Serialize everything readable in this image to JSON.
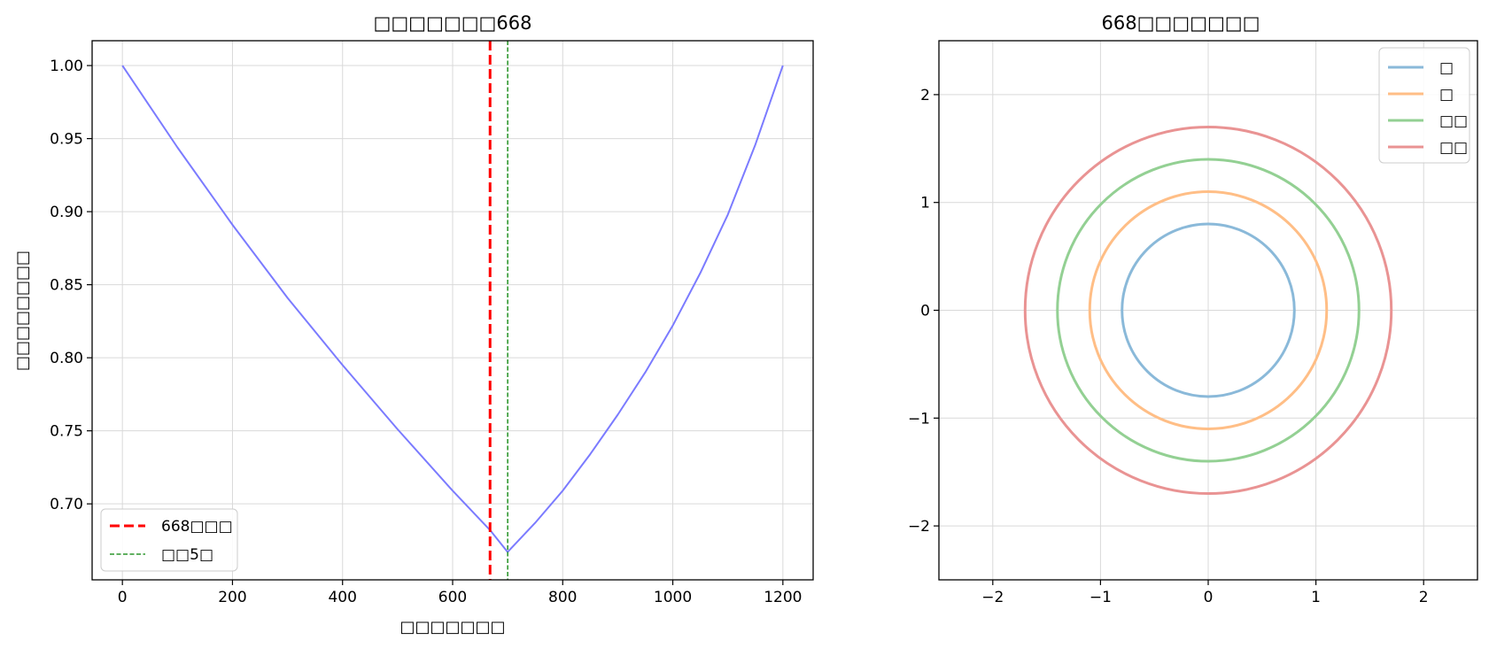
{
  "chart_data": [
    {
      "type": "line",
      "title": "□□□□□□□668",
      "xlabel": "□□□□□□□",
      "ylabel": "□□□□□□□□",
      "xlim": [
        -55,
        1255
      ],
      "ylim": [
        0.648,
        1.017
      ],
      "xticks": [
        0,
        200,
        400,
        600,
        800,
        1000,
        1200
      ],
      "yticks": [
        0.7,
        0.75,
        0.8,
        0.85,
        0.9,
        0.95,
        1.0
      ],
      "ytick_labels": [
        "0.70",
        "0.75",
        "0.80",
        "0.85",
        "0.90",
        "0.95",
        "1.00"
      ],
      "grid": true,
      "legend_position": "lower-left",
      "series": [
        {
          "name": "",
          "color": "#7b7bff",
          "x": [
            0,
            100,
            200,
            300,
            400,
            500,
            600,
            668,
            700,
            750,
            800,
            850,
            900,
            950,
            1000,
            1050,
            1100,
            1150,
            1200
          ],
          "y": [
            1.0,
            0.944,
            0.891,
            0.841,
            0.795,
            0.751,
            0.709,
            0.682,
            0.667,
            0.687,
            0.709,
            0.734,
            0.761,
            0.79,
            0.822,
            0.858,
            0.898,
            0.946,
            1.0
          ]
        }
      ],
      "vlines": [
        {
          "name": "668□□□",
          "x": 668,
          "color": "#ff0000",
          "style": "dashed",
          "width": 3
        },
        {
          "name": "□□5□",
          "x": 700,
          "color": "#008000",
          "style": "dashed",
          "width": 1.3
        }
      ]
    },
    {
      "type": "line",
      "title": "668□□□□□□□",
      "xlabel": "",
      "ylabel": "",
      "xlim": [
        -2.5,
        2.5
      ],
      "ylim": [
        -2.5,
        2.5
      ],
      "xticks": [
        -2,
        -1,
        0,
        1,
        2
      ],
      "yticks": [
        -2,
        -1,
        0,
        1,
        2
      ],
      "xtick_labels": [
        "−2",
        "−1",
        "0",
        "1",
        "2"
      ],
      "ytick_labels": [
        "−2",
        "−1",
        "0",
        "1",
        "2"
      ],
      "grid": true,
      "legend_position": "top-right",
      "series": [
        {
          "name": "□",
          "radius": 0.8,
          "color": "#8ab9d9"
        },
        {
          "name": "□",
          "radius": 1.1,
          "color": "#ffbe86"
        },
        {
          "name": "□□",
          "radius": 1.4,
          "color": "#93d093"
        },
        {
          "name": "□□",
          "radius": 1.7,
          "color": "#e99393"
        }
      ]
    }
  ]
}
